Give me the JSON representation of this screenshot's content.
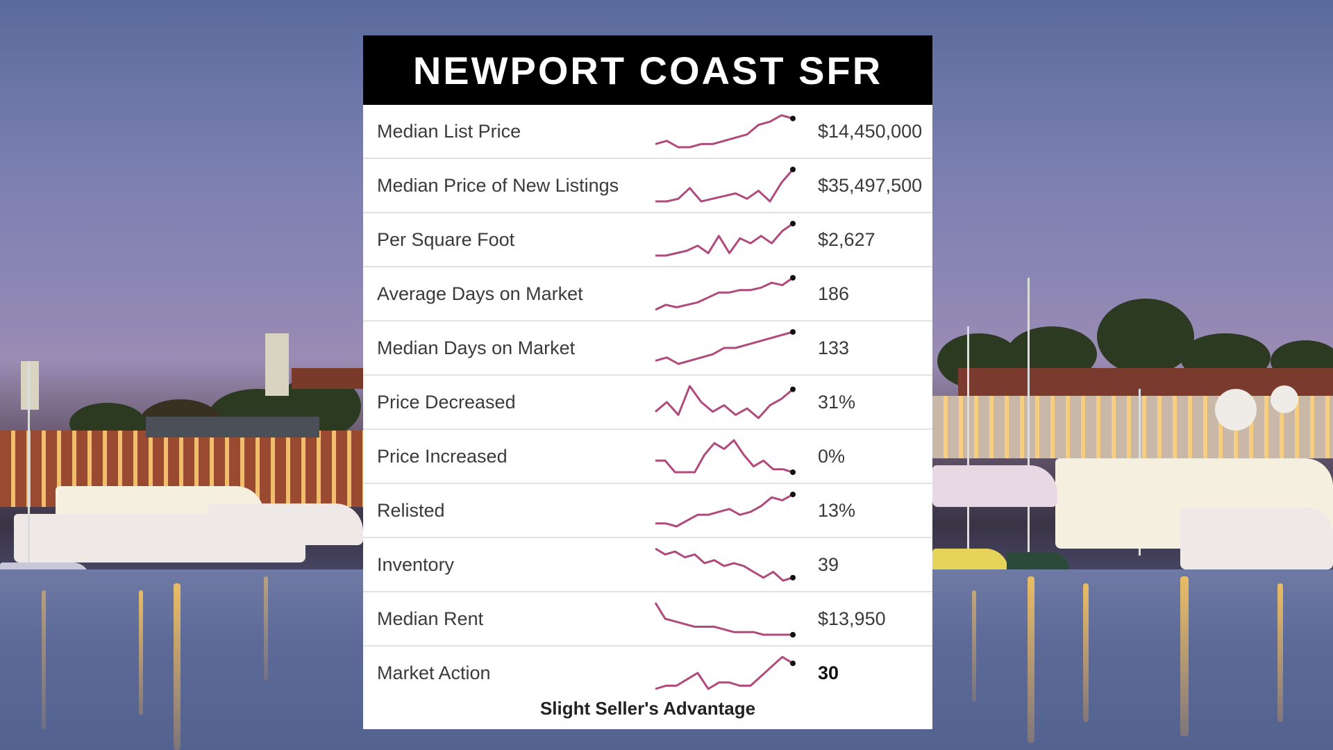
{
  "title": "NEWPORT COAST SFR",
  "spark_color": "#b04a7c",
  "metrics": [
    {
      "label": "Median List Price",
      "value": "$14,450,000",
      "spark": [
        3,
        4,
        2,
        2,
        3,
        3,
        4,
        5,
        6,
        9,
        10,
        12,
        11
      ],
      "bold": false
    },
    {
      "label": "Median Price of New Listings",
      "value": "$35,497,500",
      "spark": [
        2,
        2,
        3,
        7,
        2,
        3,
        4,
        5,
        3,
        6,
        2,
        9,
        14
      ],
      "bold": false
    },
    {
      "label": "Per Square Foot",
      "value": "$2,627",
      "spark": [
        1,
        1,
        2,
        3,
        5,
        2,
        9,
        2,
        8,
        6,
        9,
        6,
        11,
        14
      ],
      "bold": false
    },
    {
      "label": "Average Days on Market",
      "value": "186",
      "spark": [
        2,
        4,
        3,
        4,
        5,
        7,
        9,
        9,
        10,
        10,
        11,
        13,
        12,
        15
      ],
      "bold": false
    },
    {
      "label": "Median Days on Market",
      "value": "133",
      "spark": [
        4,
        5,
        3,
        4,
        5,
        6,
        8,
        8,
        9,
        10,
        11,
        12,
        13
      ],
      "bold": false
    },
    {
      "label": "Price Decreased",
      "value": "31%",
      "spark": [
        5,
        8,
        4,
        13,
        8,
        5,
        7,
        4,
        6,
        3,
        7,
        9,
        12
      ],
      "bold": false
    },
    {
      "label": "Price Increased",
      "value": "0%",
      "spark": [
        4,
        4,
        0,
        0,
        0,
        6,
        10,
        8,
        11,
        6,
        2,
        4,
        1,
        1,
        0
      ],
      "bold": false
    },
    {
      "label": "Relisted",
      "value": "13%",
      "spark": [
        3,
        3,
        2,
        4,
        6,
        6,
        7,
        8,
        6,
        7,
        9,
        12,
        11,
        13
      ],
      "bold": false
    },
    {
      "label": "Inventory",
      "value": "39",
      "spark": [
        12,
        10,
        11,
        9,
        10,
        7,
        8,
        6,
        7,
        6,
        4,
        2,
        4,
        1,
        2
      ],
      "bold": false
    },
    {
      "label": "Median Rent",
      "value": "$13,950",
      "spark": [
        14,
        8,
        7,
        6,
        5,
        5,
        5,
        4,
        3,
        3,
        3,
        2,
        2,
        2,
        2
      ],
      "bold": false
    },
    {
      "label": "Market Action",
      "value": "30",
      "spark": [
        2,
        3,
        3,
        5,
        7,
        2,
        4,
        4,
        3,
        3,
        6,
        9,
        12,
        10
      ],
      "bold": true
    }
  ],
  "footer_note": "Slight Seller's Advantage"
}
